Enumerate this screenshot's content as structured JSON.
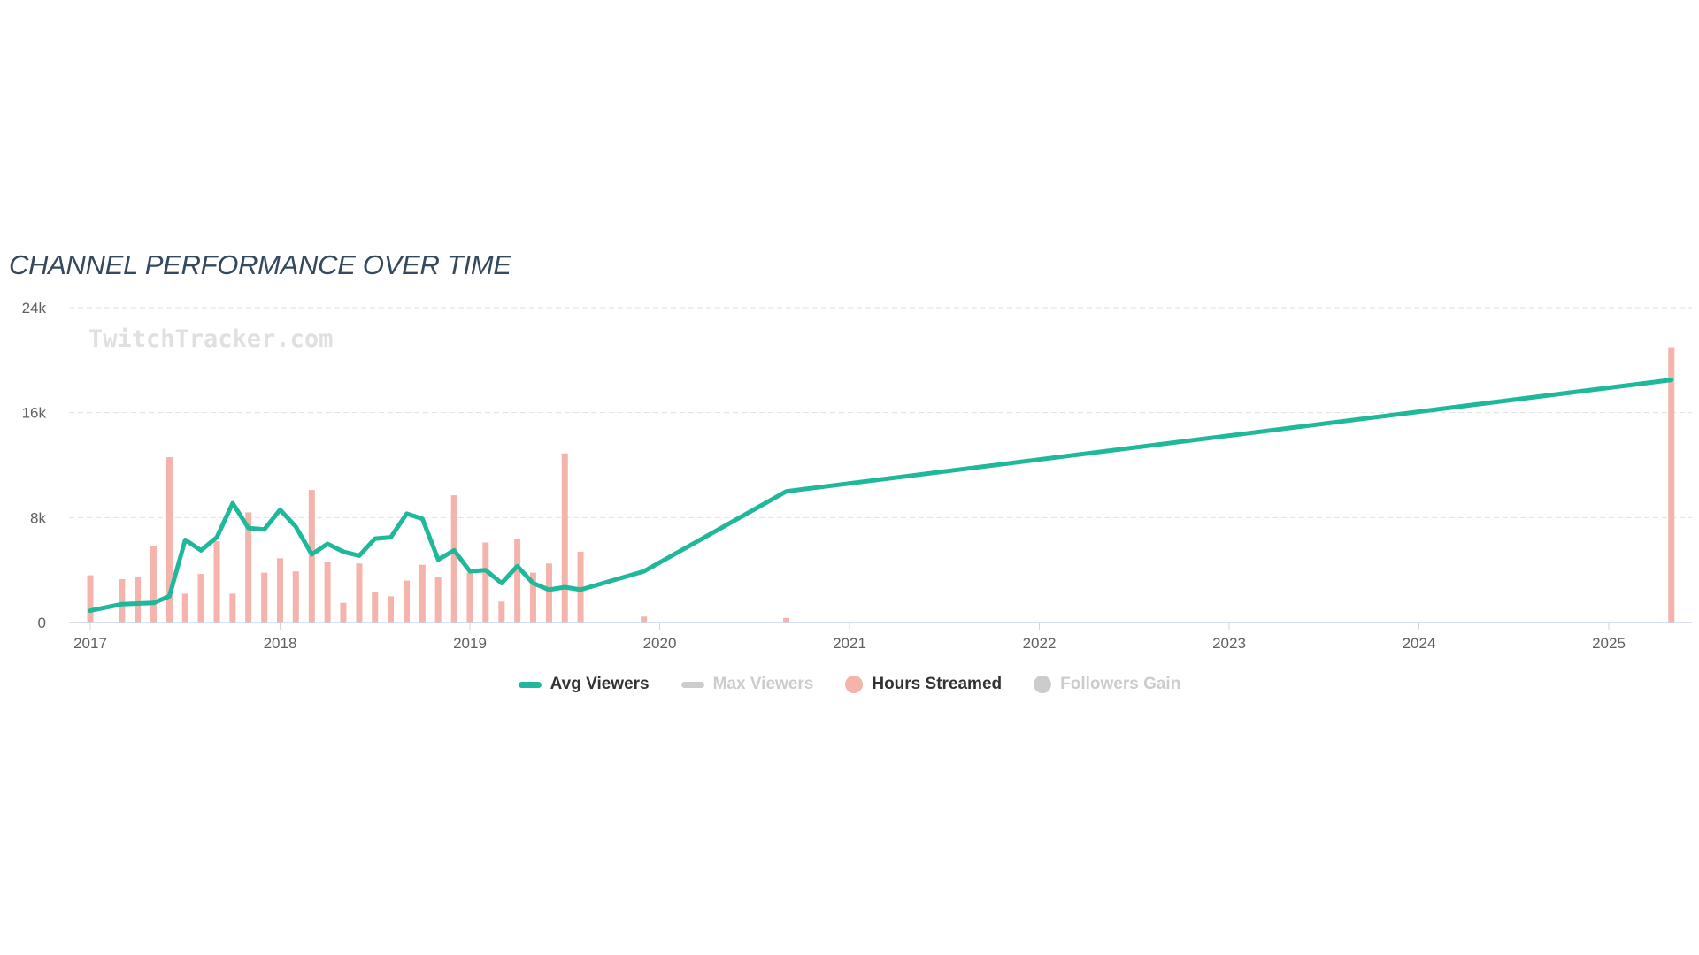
{
  "title": "CHANNEL PERFORMANCE OVER TIME",
  "watermark": "TwitchTracker.com",
  "legend": {
    "avg_viewers": "Avg Viewers",
    "max_viewers": "Max Viewers",
    "hours_streamed": "Hours Streamed",
    "followers_gain": "Followers Gain"
  },
  "colors": {
    "avg_viewers": "#1fb89a",
    "max_viewers": "#cccccc",
    "hours_streamed": "#f4b3ab",
    "followers_gain": "#cccccc",
    "grid": "#e0e0e0",
    "axis": "#ccd6eb"
  },
  "chart_data": {
    "type": "line+bar",
    "title": "CHANNEL PERFORMANCE OVER TIME",
    "xlabel": "",
    "ylabel": "",
    "ylim": [
      0,
      24000
    ],
    "x_range": [
      2016.92,
      2025.5
    ],
    "y_ticks": [
      {
        "value": 0,
        "label": "0"
      },
      {
        "value": 8000,
        "label": "8k"
      },
      {
        "value": 16000,
        "label": "16k"
      },
      {
        "value": 24000,
        "label": "24k"
      }
    ],
    "x_ticks": [
      {
        "value": 2017,
        "label": "2017"
      },
      {
        "value": 2018,
        "label": "2018"
      },
      {
        "value": 2019,
        "label": "2019"
      },
      {
        "value": 2020,
        "label": "2020"
      },
      {
        "value": 2021,
        "label": "2021"
      },
      {
        "value": 2022,
        "label": "2022"
      },
      {
        "value": 2023,
        "label": "2023"
      },
      {
        "value": 2024,
        "label": "2024"
      },
      {
        "value": 2025,
        "label": "2025"
      }
    ],
    "grid": true,
    "series": [
      {
        "name": "Avg Viewers",
        "type": "line",
        "visible": true,
        "points": [
          [
            2017.0,
            900
          ],
          [
            2017.167,
            1400
          ],
          [
            2017.25,
            1450
          ],
          [
            2017.333,
            1500
          ],
          [
            2017.417,
            2000
          ],
          [
            2017.5,
            6300
          ],
          [
            2017.583,
            5500
          ],
          [
            2017.667,
            6500
          ],
          [
            2017.75,
            9100
          ],
          [
            2017.833,
            7200
          ],
          [
            2017.917,
            7100
          ],
          [
            2018.0,
            8600
          ],
          [
            2018.083,
            7300
          ],
          [
            2018.167,
            5200
          ],
          [
            2018.25,
            6000
          ],
          [
            2018.333,
            5400
          ],
          [
            2018.417,
            5100
          ],
          [
            2018.5,
            6400
          ],
          [
            2018.583,
            6500
          ],
          [
            2018.667,
            8300
          ],
          [
            2018.75,
            7900
          ],
          [
            2018.833,
            4800
          ],
          [
            2018.917,
            5500
          ],
          [
            2019.0,
            3900
          ],
          [
            2019.083,
            4000
          ],
          [
            2019.167,
            3000
          ],
          [
            2019.25,
            4300
          ],
          [
            2019.333,
            3000
          ],
          [
            2019.417,
            2500
          ],
          [
            2019.5,
            2700
          ],
          [
            2019.583,
            2500
          ],
          [
            2019.917,
            3900
          ],
          [
            2020.667,
            10000
          ],
          [
            2025.33,
            18500
          ]
        ]
      },
      {
        "name": "Max Viewers",
        "type": "line",
        "visible": false,
        "points": []
      },
      {
        "name": "Hours Streamed",
        "type": "bar",
        "visible": true,
        "points": [
          [
            2017.0,
            3600
          ],
          [
            2017.167,
            3300
          ],
          [
            2017.25,
            3500
          ],
          [
            2017.333,
            5800
          ],
          [
            2017.417,
            12600
          ],
          [
            2017.5,
            2200
          ],
          [
            2017.583,
            3700
          ],
          [
            2017.667,
            6200
          ],
          [
            2017.75,
            2200
          ],
          [
            2017.833,
            8400
          ],
          [
            2017.917,
            3800
          ],
          [
            2018.0,
            4900
          ],
          [
            2018.083,
            3900
          ],
          [
            2018.167,
            10100
          ],
          [
            2018.25,
            4600
          ],
          [
            2018.333,
            1500
          ],
          [
            2018.417,
            4500
          ],
          [
            2018.5,
            2300
          ],
          [
            2018.583,
            2000
          ],
          [
            2018.667,
            3200
          ],
          [
            2018.75,
            4400
          ],
          [
            2018.833,
            3500
          ],
          [
            2018.917,
            9700
          ],
          [
            2019.0,
            3800
          ],
          [
            2019.083,
            6100
          ],
          [
            2019.167,
            1600
          ],
          [
            2019.25,
            6400
          ],
          [
            2019.333,
            3800
          ],
          [
            2019.417,
            4500
          ],
          [
            2019.5,
            12900
          ],
          [
            2019.583,
            5400
          ],
          [
            2019.917,
            450
          ],
          [
            2020.667,
            350
          ],
          [
            2025.33,
            21000
          ]
        ]
      },
      {
        "name": "Followers Gain",
        "type": "bar",
        "visible": false,
        "points": []
      }
    ]
  }
}
